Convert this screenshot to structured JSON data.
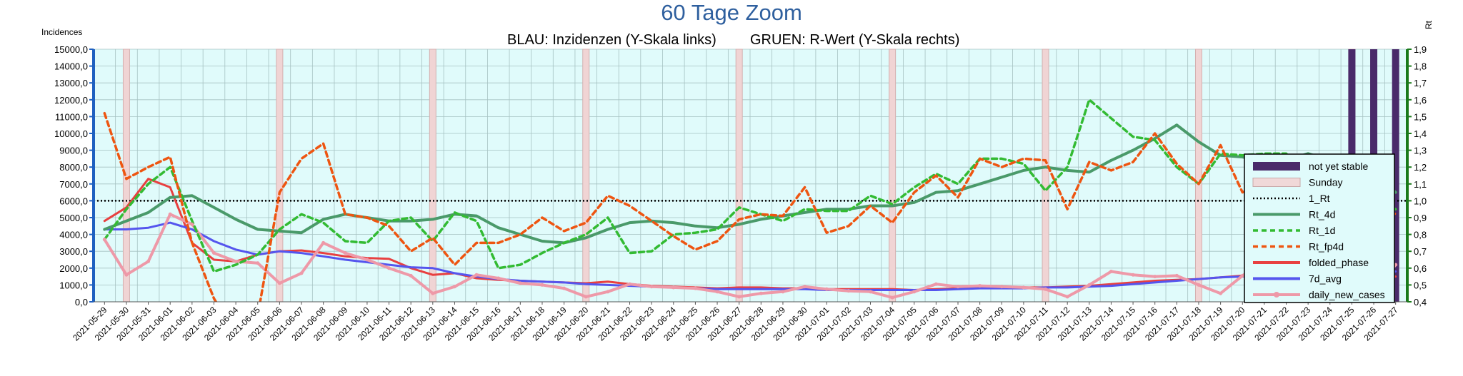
{
  "chart_data": {
    "type": "line",
    "title": "60 Tage Zoom",
    "subtitle_left": "BLAU: Inzidenzen (Y-Skala links)",
    "subtitle_right": "GRUEN: R-Wert (Y-Skala rechts)",
    "ylabel_left": "Incidences",
    "ylabel_right": "Rt",
    "ylim_left": [
      0,
      15000
    ],
    "ylim_right": [
      0.4,
      1.9
    ],
    "yticks_left": [
      "0,0",
      "1000,0",
      "2000,0",
      "3000,0",
      "4000,0",
      "5000,0",
      "6000,0",
      "7000,0",
      "8000,0",
      "9000,0",
      "10000,0",
      "11000,0",
      "12000,0",
      "13000,0",
      "14000,0",
      "15000,0"
    ],
    "yticks_right": [
      "0,4",
      "0,5",
      "0,6",
      "0,7",
      "0,8",
      "0,9",
      "1,0",
      "1,1",
      "1,2",
      "1,3",
      "1,4",
      "1,5",
      "1,6",
      "1,7",
      "1,8",
      "1,9"
    ],
    "grid": true,
    "legend_position": "right",
    "x": [
      "2021-05-29",
      "2021-05-30",
      "2021-05-31",
      "2021-06-01",
      "2021-06-02",
      "2021-06-03",
      "2021-06-04",
      "2021-06-05",
      "2021-06-06",
      "2021-06-07",
      "2021-06-08",
      "2021-06-09",
      "2021-06-10",
      "2021-06-11",
      "2021-06-12",
      "2021-06-13",
      "2021-06-14",
      "2021-06-15",
      "2021-06-16",
      "2021-06-17",
      "2021-06-18",
      "2021-06-19",
      "2021-06-20",
      "2021-06-21",
      "2021-06-22",
      "2021-06-23",
      "2021-06-24",
      "2021-06-25",
      "2021-06-26",
      "2021-06-27",
      "2021-06-28",
      "2021-06-29",
      "2021-06-30",
      "2021-07-01",
      "2021-07-02",
      "2021-07-03",
      "2021-07-04",
      "2021-07-05",
      "2021-07-06",
      "2021-07-07",
      "2021-07-08",
      "2021-07-09",
      "2021-07-10",
      "2021-07-11",
      "2021-07-12",
      "2021-07-13",
      "2021-07-14",
      "2021-07-15",
      "2021-07-16",
      "2021-07-17",
      "2021-07-18",
      "2021-07-19",
      "2021-07-20",
      "2021-07-21",
      "2021-07-22",
      "2021-07-23",
      "2021-07-24",
      "2021-07-25",
      "2021-07-26",
      "2021-07-27"
    ],
    "sundays": [
      "2021-05-30",
      "2021-06-06",
      "2021-06-13",
      "2021-06-20",
      "2021-06-27",
      "2021-07-04",
      "2021-07-11",
      "2021-07-18",
      "2021-07-25"
    ],
    "not_yet_stable": [
      "2021-07-25",
      "2021-07-26",
      "2021-07-27"
    ],
    "one_rt_value": 1.0,
    "series": [
      {
        "name": "Rt_4d",
        "axis": "right",
        "color": "#4a9a6a",
        "width": 4,
        "dash": "",
        "values": [
          0.83,
          0.88,
          0.93,
          1.02,
          1.03,
          0.96,
          0.89,
          0.83,
          0.82,
          0.81,
          0.89,
          0.92,
          0.9,
          0.88,
          0.88,
          0.89,
          0.92,
          0.91,
          0.84,
          0.8,
          0.76,
          0.75,
          0.78,
          0.83,
          0.87,
          0.88,
          0.87,
          0.85,
          0.84,
          0.86,
          0.89,
          0.91,
          0.93,
          0.95,
          0.95,
          0.97,
          0.97,
          0.99,
          1.05,
          1.06,
          1.1,
          1.14,
          1.18,
          1.2,
          1.18,
          1.17,
          1.24,
          1.3,
          1.37,
          1.45,
          1.35,
          1.27,
          1.26,
          1.23,
          1.24,
          1.28,
          1.24,
          1.2,
          1.15,
          1.05
        ]
      },
      {
        "name": "Rt_1d",
        "axis": "right",
        "color": "#33bb33",
        "width": 3.5,
        "dash": "7,5",
        "values": [
          0.77,
          0.95,
          1.1,
          1.2,
          0.88,
          0.58,
          0.62,
          0.68,
          0.83,
          0.92,
          0.87,
          0.76,
          0.75,
          0.88,
          0.9,
          0.76,
          0.93,
          0.88,
          0.6,
          0.62,
          0.69,
          0.75,
          0.8,
          0.9,
          0.69,
          0.7,
          0.8,
          0.81,
          0.83,
          0.96,
          0.92,
          0.88,
          0.95,
          0.94,
          0.94,
          1.03,
          0.98,
          1.08,
          1.16,
          1.1,
          1.25,
          1.25,
          1.22,
          1.06,
          1.2,
          1.6,
          1.49,
          1.38,
          1.36,
          1.2,
          1.1,
          1.28,
          1.27,
          1.28,
          1.28,
          1.15,
          1.07,
          1.05,
          1.0,
          0.95
        ]
      },
      {
        "name": "Rt_fp4d",
        "axis": "right",
        "color": "#ee5511",
        "width": 3.5,
        "dash": "7,5",
        "values": [
          1.52,
          1.13,
          1.2,
          1.26,
          0.75,
          0.42,
          0.2,
          0.32,
          1.05,
          1.25,
          1.34,
          0.92,
          0.9,
          0.85,
          0.7,
          0.78,
          0.62,
          0.75,
          0.75,
          0.8,
          0.9,
          0.82,
          0.87,
          1.03,
          0.97,
          0.88,
          0.79,
          0.71,
          0.76,
          0.89,
          0.92,
          0.91,
          1.08,
          0.81,
          0.85,
          0.97,
          0.87,
          1.05,
          1.15,
          1.02,
          1.25,
          1.2,
          1.25,
          1.24,
          0.95,
          1.23,
          1.18,
          1.23,
          1.4,
          1.22,
          1.1,
          1.33,
          1.05,
          1.1,
          1.25,
          1.08,
          1.22,
          1.09,
          0.99,
          0.92
        ]
      },
      {
        "name": "folded_phase",
        "axis": "left",
        "color": "#e84040",
        "width": 3,
        "dash": "",
        "values": [
          4800,
          5600,
          7300,
          6800,
          3500,
          2500,
          2400,
          2800,
          3000,
          3050,
          2900,
          2700,
          2600,
          2550,
          2000,
          1600,
          1700,
          1400,
          1300,
          1250,
          1200,
          1150,
          1100,
          1200,
          1050,
          950,
          900,
          850,
          800,
          850,
          850,
          800,
          800,
          750,
          750,
          750,
          750,
          700,
          750,
          800,
          850,
          850,
          850,
          850,
          900,
          950,
          1050,
          1150,
          1250,
          1300,
          1350,
          1450,
          1550,
          1650,
          1700,
          1650,
          1650,
          1700,
          1700,
          1500
        ]
      },
      {
        "name": "7d_avg",
        "axis": "left",
        "color": "#5555ee",
        "width": 3,
        "dash": "",
        "values": [
          4300,
          4300,
          4400,
          4700,
          4300,
          3600,
          3100,
          2800,
          3000,
          2900,
          2700,
          2500,
          2350,
          2200,
          2050,
          2000,
          1700,
          1500,
          1350,
          1250,
          1200,
          1150,
          1050,
          1000,
          950,
          900,
          850,
          800,
          750,
          750,
          750,
          750,
          750,
          700,
          700,
          700,
          700,
          700,
          700,
          750,
          800,
          800,
          800,
          850,
          850,
          900,
          950,
          1050,
          1150,
          1250,
          1350,
          1450,
          1500,
          1550,
          1650,
          1700,
          1700,
          1750,
          1800,
          1800
        ]
      },
      {
        "name": "daily_new_cases",
        "axis": "left",
        "color": "#ee99a8",
        "width": 4,
        "dash": "",
        "values": [
          3700,
          1600,
          2400,
          5200,
          4600,
          2900,
          2400,
          2300,
          1100,
          1700,
          3500,
          2900,
          2500,
          2000,
          1550,
          500,
          900,
          1600,
          1400,
          1100,
          1000,
          800,
          300,
          600,
          1050,
          900,
          850,
          800,
          600,
          300,
          500,
          600,
          900,
          750,
          650,
          600,
          250,
          600,
          1050,
          900,
          950,
          900,
          850,
          750,
          300,
          1000,
          1800,
          1600,
          1500,
          1550,
          1000,
          500,
          1550,
          2400,
          2300,
          2200,
          2000,
          1500,
          600,
          2200
        ]
      }
    ],
    "legend": [
      {
        "name": "not yet stable",
        "kind": "bar",
        "color": "#4a2a6a"
      },
      {
        "name": "Sunday",
        "kind": "bar",
        "color": "#f0d8d8"
      },
      {
        "name": "1_Rt",
        "kind": "dotted",
        "color": "#000000"
      },
      {
        "name": "Rt_4d",
        "kind": "line",
        "color": "#4a9a6a"
      },
      {
        "name": "Rt_1d",
        "kind": "dash",
        "color": "#33bb33"
      },
      {
        "name": "Rt_fp4d",
        "kind": "dash",
        "color": "#ee5511"
      },
      {
        "name": "folded_phase",
        "kind": "line",
        "color": "#e84040"
      },
      {
        "name": "7d_avg",
        "kind": "line",
        "color": "#5555ee"
      },
      {
        "name": "daily_new_cases",
        "kind": "marker",
        "color": "#ee99a8"
      }
    ],
    "colors": {
      "plot_background": "#e0fbfb",
      "grid": "#a6c2c2",
      "left_axis": "#1f60c0",
      "right_axis": "#1a7a1a",
      "title": "#2e5f9e"
    }
  }
}
